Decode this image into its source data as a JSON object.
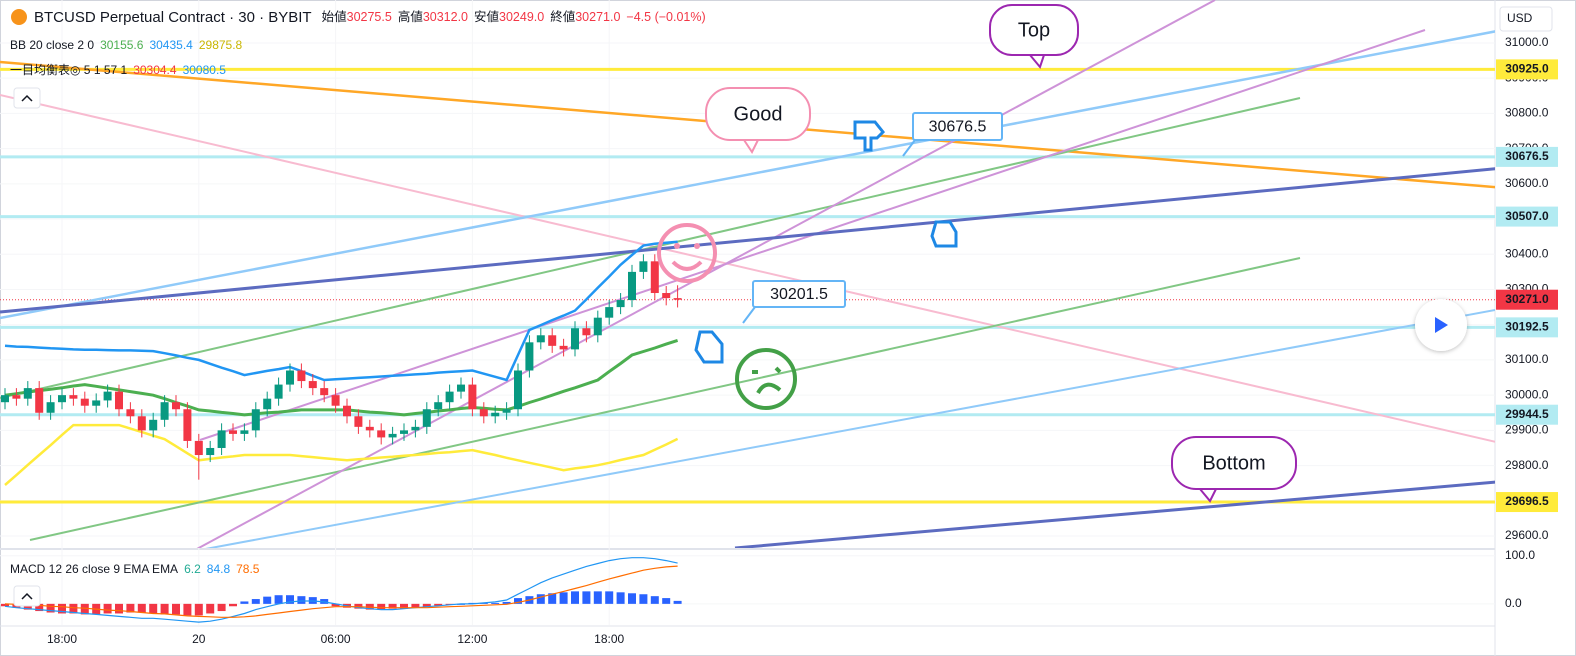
{
  "chart_data": {
    "type": "candlestick",
    "title": "BTCUSD Perpetual Contract · 30 · BYBIT",
    "ohlc_names": [
      "始値",
      "高値",
      "安値",
      "終値"
    ],
    "ohlc_value_labels": [
      "30275.5",
      "30312.0",
      "30249.0",
      "30271.0"
    ],
    "change": "−4.5 (−0.01%)",
    "currency": "USD",
    "up_color": "#089981",
    "down_color": "#f23645",
    "open": [
      29980,
      30000,
      29990,
      30020,
      29950,
      29980,
      30000,
      29990,
      29970,
      29985,
      30010,
      29960,
      29940,
      29900,
      29930,
      29980,
      29960,
      29870,
      29830,
      29850,
      29900,
      29890,
      29900,
      29960,
      29990,
      30030,
      30070,
      30040,
      30020,
      30000,
      29970,
      29940,
      29910,
      29900,
      29880,
      29890,
      29900,
      29910,
      29960,
      29980,
      30010,
      30030,
      29960,
      29940,
      29950,
      29960,
      30070,
      30150,
      30170,
      30140,
      30130,
      30190,
      30170,
      30220,
      30250,
      30270,
      30350,
      30380,
      30290,
      30275.5
    ],
    "high": [
      30020,
      30020,
      30040,
      30040,
      30000,
      30020,
      30020,
      30010,
      30005,
      30030,
      30030,
      29980,
      29960,
      29950,
      30000,
      30000,
      29980,
      29890,
      29870,
      29920,
      29920,
      29920,
      29980,
      30010,
      30050,
      30090,
      30090,
      30060,
      30040,
      30020,
      29990,
      29960,
      29930,
      29920,
      29910,
      29920,
      29930,
      29980,
      30000,
      30030,
      30050,
      30050,
      29980,
      29970,
      29980,
      30090,
      30170,
      30190,
      30190,
      30160,
      30210,
      30210,
      30240,
      30270,
      30290,
      30370,
      30400,
      30400,
      30310,
      30312
    ],
    "low": [
      29960,
      29970,
      29970,
      29930,
      29930,
      29960,
      29970,
      29950,
      29950,
      29965,
      29940,
      29920,
      29880,
      29880,
      29910,
      29940,
      29850,
      29760,
      29810,
      29830,
      29870,
      29870,
      29880,
      29940,
      29970,
      30010,
      30020,
      30000,
      29980,
      29950,
      29920,
      29890,
      29880,
      29860,
      29860,
      29870,
      29880,
      29890,
      29940,
      29960,
      29990,
      29940,
      29920,
      29920,
      29930,
      29940,
      30050,
      30130,
      30120,
      30110,
      30110,
      30150,
      30150,
      30200,
      30230,
      30250,
      30330,
      30270,
      30255,
      30249
    ],
    "close": [
      30000,
      29990,
      30020,
      29950,
      29980,
      30000,
      29990,
      29970,
      29985,
      30010,
      29960,
      29940,
      29900,
      29930,
      29980,
      29960,
      29870,
      29830,
      29850,
      29900,
      29890,
      29900,
      29960,
      29990,
      30030,
      30070,
      30040,
      30020,
      30000,
      29970,
      29940,
      29910,
      29900,
      29880,
      29890,
      29900,
      29910,
      29960,
      29980,
      30010,
      30030,
      29960,
      29940,
      29950,
      29960,
      30070,
      30150,
      30170,
      30140,
      30130,
      30190,
      30170,
      30220,
      30250,
      30270,
      30350,
      30380,
      30290,
      30275.5,
      30271
    ],
    "ylim": [
      29566,
      31122
    ],
    "yticks": [
      {
        "value": 29600,
        "label": "29600.0"
      },
      {
        "value": 29700,
        "label": "29700.0"
      },
      {
        "value": 29800,
        "label": "29800.0"
      },
      {
        "value": 29900,
        "label": "29900.0"
      },
      {
        "value": 30000,
        "label": "30000.0"
      },
      {
        "value": 30100,
        "label": "30100.0"
      },
      {
        "value": 30200,
        "label": "30200.0"
      },
      {
        "value": 30300,
        "label": "30300.0"
      },
      {
        "value": 30400,
        "label": "30400.0"
      },
      {
        "value": 30500,
        "label": "30500.0"
      },
      {
        "value": 30600,
        "label": "30600.0"
      },
      {
        "value": 30700,
        "label": "30700.0"
      },
      {
        "value": 30800,
        "label": "30800.0"
      },
      {
        "value": 30900,
        "label": "30900.0"
      },
      {
        "value": 31000,
        "label": "31000.0"
      }
    ],
    "xticks": [
      {
        "value": 5,
        "label": "18:00"
      },
      {
        "value": 17,
        "label": "20"
      },
      {
        "value": 29,
        "label": "06:00"
      },
      {
        "value": 41,
        "label": "12:00"
      },
      {
        "value": 53,
        "label": "18:00"
      }
    ],
    "price_lines": [
      {
        "value": 30925,
        "label": "30925.0",
        "color": "#ffeb3b"
      },
      {
        "value": 30676.5,
        "label": "30676.5",
        "color": "#b2ebf2"
      },
      {
        "value": 30507,
        "label": "30507.0",
        "color": "#b2ebf2"
      },
      {
        "value": 30271,
        "label": "30271.0",
        "color": "#f23645"
      },
      {
        "value": 30192.5,
        "label": "30192.5",
        "color": "#b2ebf2"
      },
      {
        "value": 29944.5,
        "label": "29944.5",
        "color": "#b2ebf2"
      },
      {
        "value": 29696.5,
        "label": "29696.5",
        "color": "#ffeb3b"
      }
    ],
    "bollinger": {
      "label": "BB 20 close 2 0",
      "lines": [
        {
          "color": "#4caf50",
          "values": [
            30000,
            30004,
            30009,
            30013,
            30017,
            30021,
            30026,
            30030,
            30025,
            30020,
            30015,
            30010,
            30005,
            30000,
            29990,
            29979,
            29969,
            29958,
            29955,
            29951,
            29948,
            29944,
            29947,
            29950,
            29952,
            29955,
            29958,
            29958,
            29958,
            29958,
            29958,
            29955,
            29952,
            29950,
            29947,
            29944,
            29948,
            29951,
            29955,
            29958,
            29962,
            29965,
            29963,
            29960,
            29958,
            29968,
            29979,
            29989,
            30000,
            30011,
            30021,
            30032,
            30043,
            30067,
            30090,
            30114,
            30124,
            30134,
            30145,
            30155.6
          ]
        },
        {
          "color": "#2196f3",
          "values": [
            30140,
            30138,
            30137,
            30135,
            30133,
            30132,
            30130,
            30129,
            30129,
            30128,
            30127,
            30127,
            30126,
            30125,
            30119,
            30113,
            30106,
            30100,
            30089,
            30078,
            30068,
            30057,
            30063,
            30069,
            30074,
            30080,
            30068,
            30055,
            30043,
            30045,
            30047,
            30049,
            30051,
            30053,
            30055,
            30057,
            30059,
            30061,
            30064,
            30066,
            30068,
            30070,
            30061,
            30052,
            30043,
            30114,
            30185,
            30199,
            30213,
            30226,
            30240,
            30272,
            30305,
            30337,
            30370,
            30398,
            30425,
            30430,
            30433,
            30435.4
          ]
        },
        {
          "color": "#ffeb3b",
          "values": [
            29745,
            29773,
            29802,
            29830,
            29858,
            29887,
            29915,
            29915,
            29915,
            29915,
            29915,
            29905,
            29895,
            29885,
            29875,
            29855,
            29835,
            29815,
            29819,
            29823,
            29826,
            29830,
            29830,
            29830,
            29830,
            29830,
            29827,
            29824,
            29821,
            29818,
            29815,
            29818,
            29820,
            29823,
            29825,
            29828,
            29830,
            29833,
            29836,
            29838,
            29841,
            29844,
            29837,
            29830,
            29822,
            29815,
            29808,
            29801,
            29794,
            29787,
            29792,
            29796,
            29801,
            29808,
            29816,
            29823,
            29830,
            29845,
            29860,
            29875.8
          ]
        }
      ]
    },
    "ichimoku": {
      "label": "一目均衡表◎ 5 1 57 1",
      "values": [
        30304.4,
        30080.5
      ],
      "colors": [
        "#f23645",
        "#2196f3"
      ]
    },
    "macd": {
      "label": "MACD 12 26 close 9 EMA EMA",
      "ylim": [
        -44,
        110
      ],
      "yticks": [
        {
          "value": 0,
          "label": "0.0"
        },
        {
          "value": 100,
          "label": "100.0"
        }
      ],
      "histogram": {
        "up_color": "#2962ff",
        "down_color": "#f23645",
        "values": [
          -5,
          -8,
          -12,
          -15,
          -18,
          -20,
          -20,
          -22,
          -22,
          -20,
          -20,
          -18,
          -18,
          -20,
          -22,
          -22,
          -24,
          -24,
          -20,
          -15,
          -5,
          5,
          10,
          15,
          18,
          18,
          16,
          14,
          10,
          -5,
          -8,
          -10,
          -12,
          -12,
          -10,
          -10,
          -8,
          -6,
          -4,
          -2,
          0,
          2,
          2,
          2,
          4,
          12,
          16,
          20,
          22,
          24,
          26,
          26,
          26,
          26,
          24,
          22,
          20,
          16,
          12,
          6.2
        ]
      },
      "macd": {
        "color": "#2196f3",
        "values": [
          -5,
          -8,
          -10,
          -12,
          -14,
          -16,
          -18,
          -20,
          -22,
          -24,
          -26,
          -28,
          -30,
          -30,
          -32,
          -34,
          -36,
          -38,
          -36,
          -32,
          -26,
          -20,
          -12,
          -6,
          0,
          4,
          6,
          6,
          4,
          0,
          -4,
          -8,
          -10,
          -12,
          -12,
          -10,
          -8,
          -6,
          -4,
          -2,
          0,
          0,
          2,
          4,
          8,
          20,
          32,
          44,
          54,
          62,
          70,
          78,
          84,
          90,
          94,
          96,
          96,
          94,
          90,
          84.8
        ]
      },
      "signal": {
        "color": "#ff6d00",
        "values": [
          0,
          -1,
          -2,
          -3,
          -5,
          -6,
          -8,
          -9,
          -11,
          -13,
          -14,
          -16,
          -18,
          -20,
          -21,
          -23,
          -25,
          -26,
          -27,
          -28,
          -28,
          -27,
          -25,
          -22,
          -19,
          -16,
          -13,
          -10,
          -8,
          -6,
          -6,
          -6,
          -7,
          -8,
          -8,
          -8,
          -8,
          -8,
          -7,
          -6,
          -5,
          -4,
          -3,
          -2,
          -1,
          3,
          8,
          14,
          20,
          26,
          32,
          38,
          45,
          52,
          58,
          64,
          70,
          74,
          77,
          78.5
        ]
      }
    },
    "annotations": [
      "Top",
      "Good",
      "Bottom",
      "30676.5",
      "30201.5"
    ]
  }
}
